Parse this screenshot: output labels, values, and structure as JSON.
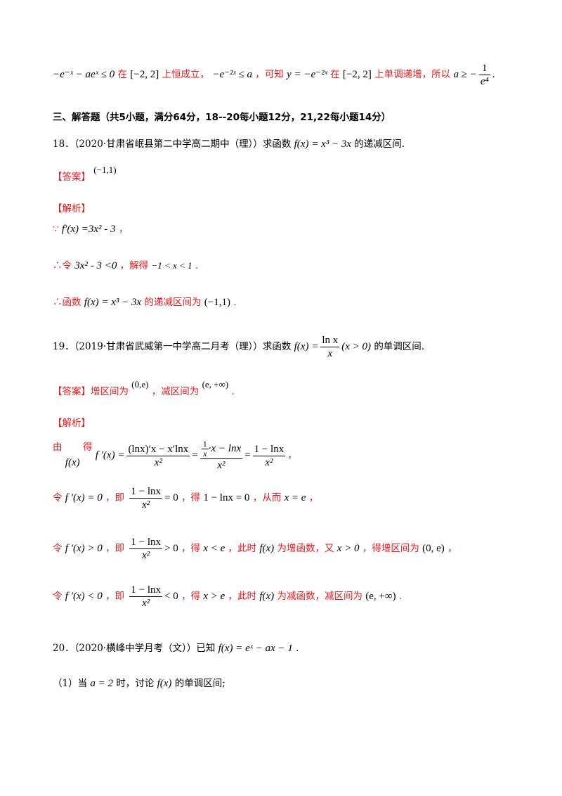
{
  "p1": {
    "m1": "−e⁻ˣ − aeˣ ≤ 0",
    "t1": "在",
    "m2": "[−2, 2]",
    "t2": "上恒成立，",
    "m3": "−e⁻²ˣ ≤ a",
    "t3": "，可知",
    "m4": "y = −e⁻²ˣ",
    "t4": "在",
    "m5": "[−2, 2]",
    "t5": "上单调递增，所以",
    "m6a": "a ≥ −",
    "m6num": "1",
    "m6den": "e⁴",
    "end": "."
  },
  "section": {
    "title": "三、解答题（共5小题，满分64分，18--20每小题12分，21,22每小题14分）"
  },
  "q18": {
    "stem": "18．（2020·甘肃省岷县第二中学高二期中（理））求函数",
    "m": "f(x) = x³ − 3x",
    "tail": "的递减区间.",
    "answer_label": "【答案】",
    "answer": "(−1,1)",
    "analysis_label": "【解析】",
    "s1_pre": "∵",
    "s1_m": "f′(x) =3x² - 3",
    "s1_post": "，",
    "s2_pre": "∴令",
    "s2_m": "3x² - 3 <0",
    "s2_mid": "，解得",
    "s2_m2": "−1 < x < 1",
    "s2_end": ".",
    "s3_pre": "∴函数",
    "s3_m": "f(x) = x³ − 3x",
    "s3_mid": "的递减区间为",
    "s3_m2": "(−1,1)",
    "s3_end": "."
  },
  "q19": {
    "stem": "19．（2019·甘肃省武威第一中学高二月考（理））求函数",
    "m_pre": "f(x) =",
    "m_num": "ln x",
    "m_den": "x",
    "m_post": "(x > 0)",
    "tail": "的单调区间.",
    "answer_label": "【答案】",
    "ans_t1": "增区间为",
    "ans_m1": "(0,e)",
    "ans_t2": "，减区间为",
    "ans_m2": "(e, +∞)",
    "ans_end": ".",
    "analysis_label": "【解析】",
    "d_t1": "由",
    "d_m1": "f(x)",
    "d_t2": "得",
    "d_m2": "f ′(x) =",
    "d_f1num": "(lnx)′x − x′lnx",
    "d_f1den": "x²",
    "d_eq1": "=",
    "d_f2num_top": "1",
    "d_f2num_top_den": "x",
    "d_f2num_rest": "·x − lnx",
    "d_f2den": "x²",
    "d_eq2": "=",
    "d_f3num": "1 − lnx",
    "d_f3den": "x²",
    "d_end": "，",
    "e1_t1": "令",
    "e1_m1": "f ′(x) = 0",
    "e1_t2": "，即",
    "e1_num": "1 − lnx",
    "e1_den": "x²",
    "e1_rel": "= 0",
    "e1_t3": "，得",
    "e1_m2": "1 − lnx = 0",
    "e1_t4": "，从而",
    "e1_m3": "x = e",
    "e1_end": "，",
    "e2_t1": "令",
    "e2_m1": "f ′(x) > 0",
    "e2_t2": "，即",
    "e2_num": "1 − lnx",
    "e2_den": "x²",
    "e2_rel": "> 0",
    "e2_t3": "，得",
    "e2_m2": "x < e",
    "e2_t4": "，此时",
    "e2_m3": "f(x)",
    "e2_t5": "为增函数，又",
    "e2_m4": "x > 0",
    "e2_t6": "，得增区间为",
    "e2_m5": "(0,  e)",
    "e2_end": "，",
    "e3_t1": "令",
    "e3_m1": "f ′(x) < 0",
    "e3_t2": "，即",
    "e3_num": "1 − lnx",
    "e3_den": "x²",
    "e3_rel": "< 0",
    "e3_t3": "，得",
    "e3_m2": "x > e",
    "e3_t4": "，此时",
    "e3_m3": "f(x)",
    "e3_t5": "为减函数，减区间为",
    "e3_m4": "(e, +∞)",
    "e3_end": "."
  },
  "q20": {
    "stem": "20．（2020·横峰中学月考（文））已知",
    "m": "f(x) = eˣ − ax − 1",
    "tail": ".",
    "p1_pre": "（1）当",
    "p1_m": "a = 2",
    "p1_mid": "时，讨论",
    "p1_m2": "f(x)",
    "p1_tail": "的单调区间;"
  }
}
